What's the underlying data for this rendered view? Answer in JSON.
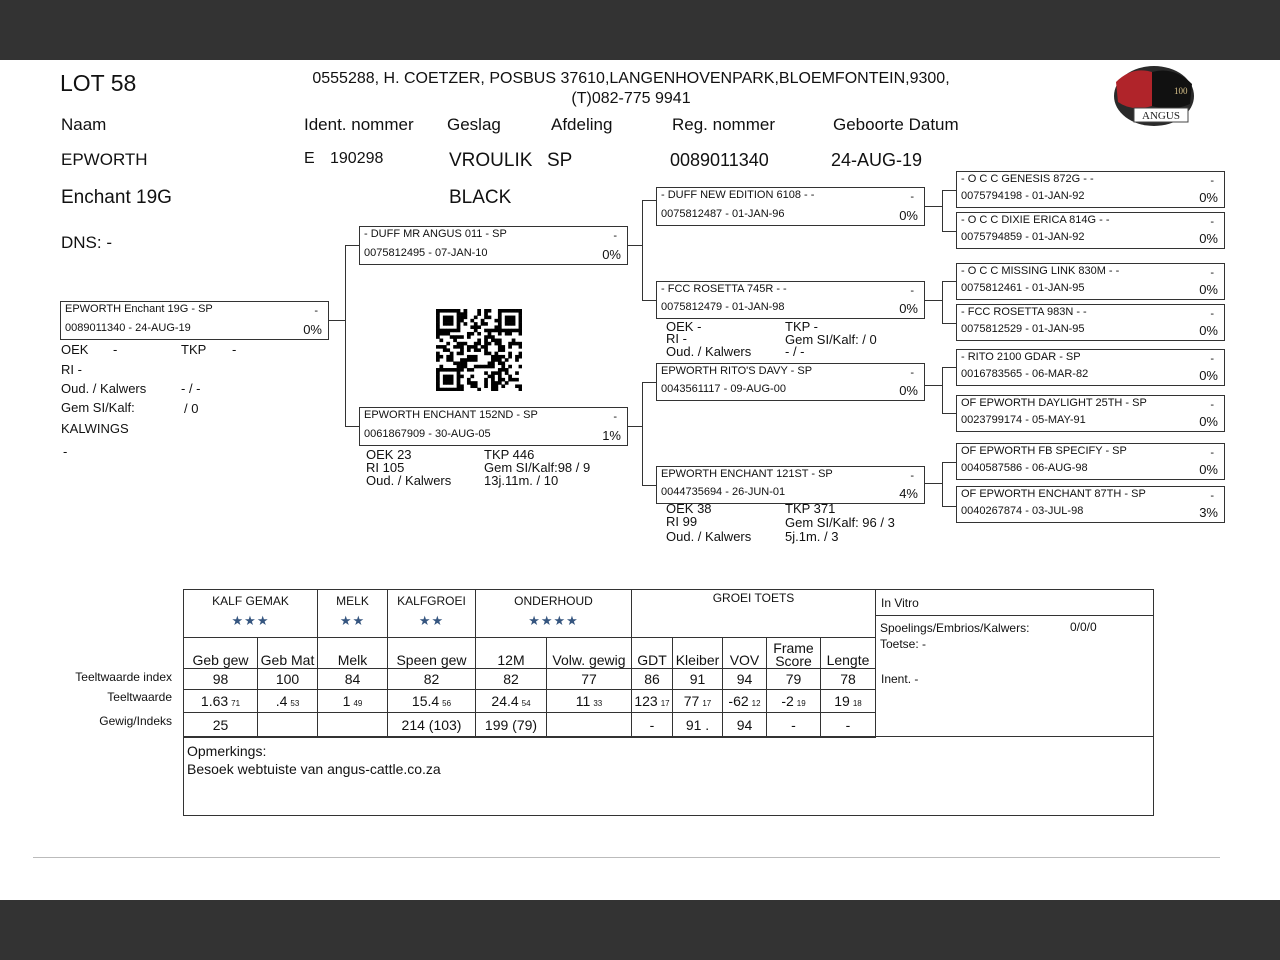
{
  "lot": "LOT 58",
  "owner_line1": "0555288, H. COETZER, POSBUS 37610,LANGENHOVENPARK,BLOEMFONTEIN,9300,",
  "owner_line2": "(T)082-775 9941",
  "logo": {
    "text": "ANGUS",
    "sub": "100 years",
    "colors": {
      "red": "#b0242a",
      "black": "#111111"
    }
  },
  "headers": {
    "naam": "Naam",
    "ident": "Ident. nommer",
    "geslag": "Geslag",
    "afdeling": "Afdeling",
    "reg": "Reg. nommer",
    "geboorte": "Geboorte Datum"
  },
  "animal": {
    "naam1": "EPWORTH",
    "naam2": "Enchant 19G",
    "ident_prefix": "E",
    "ident": "190298",
    "geslag": "VROULIK",
    "afdeling": "SP",
    "kleur": "BLACK",
    "reg": "0089011340",
    "geboorte": "24-AUG-19",
    "dns": "DNS: -"
  },
  "subject_stats": {
    "oek_l": "OEK",
    "oek": "-",
    "tkp_l": "TKP",
    "tkp": "-",
    "ri": "RI  -",
    "oud_l": "Oud. / Kalwers",
    "oud": "- / -",
    "gem_l": "Gem SI/Kalf:",
    "gem": "/ 0",
    "kalwings": "KALWINGS",
    "kalwings_val": "-"
  },
  "pedigree": {
    "subject": {
      "name": "EPWORTH Enchant 19G - SP",
      "dash": "-",
      "reg": "0089011340 -  24-AUG-19",
      "pct": "0%"
    },
    "sire": {
      "name": "- DUFF MR ANGUS 011 - SP",
      "dash": "-",
      "reg": "0075812495 - 07-JAN-10",
      "pct": "0%"
    },
    "dam": {
      "name": "EPWORTH ENCHANT 152ND - SP",
      "dash": "-",
      "reg": "0061867909 - 30-AUG-05",
      "pct": "1%"
    },
    "ss": {
      "name": "- DUFF NEW EDITION 6108 - -",
      "dash": "-",
      "reg": "0075812487 - 01-JAN-96",
      "pct": "0%"
    },
    "sd": {
      "name": "- FCC ROSETTA 745R - -",
      "dash": "-",
      "reg": "0075812479 - 01-JAN-98",
      "pct": "0%"
    },
    "ds": {
      "name": "EPWORTH RITO'S DAVY - SP",
      "dash": "-",
      "reg": "0043561117 - 09-AUG-00",
      "pct": "0%"
    },
    "dd": {
      "name": "EPWORTH ENCHANT 121ST - SP",
      "dash": "-",
      "reg": "0044735694 - 26-JUN-01",
      "pct": "4%"
    },
    "g3": [
      {
        "name": "- O C C GENESIS 872G - -",
        "dash": "-",
        "reg": "0075794198 - 01-JAN-92",
        "pct": "0%"
      },
      {
        "name": "- O C C  DIXIE ERICA 814G - -",
        "dash": "-",
        "reg": "0075794859 - 01-JAN-92",
        "pct": "0%"
      },
      {
        "name": "- O C C MISSING LINK 830M - -",
        "dash": "-",
        "reg": "0075812461 - 01-JAN-95",
        "pct": "0%"
      },
      {
        "name": "- FCC ROSETTA 983N - -",
        "dash": "-",
        "reg": "0075812529 - 01-JAN-95",
        "pct": "0%"
      },
      {
        "name": "- RITO 2100 GDAR - SP",
        "dash": "-",
        "reg": "0016783565 - 06-MAR-82",
        "pct": "0%"
      },
      {
        "name": "OF EPWORTH DAYLIGHT 25TH - SP",
        "dash": "-",
        "reg": "0023799174 - 05-MAY-91",
        "pct": "0%"
      },
      {
        "name": "OF EPWORTH FB SPECIFY - SP",
        "dash": "-",
        "reg": "0040587586 - 06-AUG-98",
        "pct": "0%"
      },
      {
        "name": "OF EPWORTH ENCHANT 87TH - SP",
        "dash": "-",
        "reg": "0040267874 - 03-JUL-98",
        "pct": "3%"
      }
    ]
  },
  "dam_stats": {
    "oek": "OEK       23",
    "tkp": "TKP       446",
    "ri": "RI   105",
    "gem": "Gem SI/Kalf:98 / 9",
    "oud": "Oud. / Kalwers",
    "oud_v": "13j.11m. / 10"
  },
  "sd_stats": {
    "oek": "OEK      -",
    "tkp": "TKP       -",
    "ri": "RI        -",
    "gem": "Gem SI/Kalf:   / 0",
    "oud": "Oud. / Kalwers",
    "oud_v": "- / -"
  },
  "dd_stats": {
    "oek": "OEK       38",
    "tkp": "TKP        371",
    "ri": "RI           99",
    "gem": "Gem SI/Kalf:   96 / 3",
    "oud": "Oud. / Kalwers",
    "oud_v": "5j.1m. / 3"
  },
  "qr": {
    "icon": "qr-code-icon"
  },
  "ebv": {
    "groups": [
      {
        "label": "KALF GEMAK",
        "stars": "★★★"
      },
      {
        "label": "MELK",
        "stars": "★★"
      },
      {
        "label": "KALFGROEI",
        "stars": "★★"
      },
      {
        "label": "ONDERHOUD",
        "stars": "★★★★"
      },
      {
        "label": "GROEI TOETS",
        "stars": ""
      }
    ],
    "columns": [
      "Geb gew",
      "Geb Mat",
      "Melk",
      "Speen gew",
      "12M",
      "Volw. gewig",
      "GDT",
      "Kleiber",
      "VOV",
      "Frame Score",
      "Lengte"
    ],
    "row_labels": [
      "Teeltwaarde index",
      "Teeltwaarde",
      "Gewig/Indeks"
    ],
    "index": [
      "98",
      "100",
      "84",
      "82",
      "82",
      "77",
      "86",
      "91",
      "94",
      "79",
      "78"
    ],
    "ebv": [
      [
        "1.63",
        "71"
      ],
      [
        ".4",
        "53"
      ],
      [
        "1",
        "49"
      ],
      [
        "15.4",
        "56"
      ],
      [
        "24.4",
        "54"
      ],
      [
        "11",
        "33"
      ],
      [
        "123",
        "17"
      ],
      [
        "77",
        "17"
      ],
      [
        "-62",
        "12"
      ],
      [
        "-2",
        "19"
      ],
      [
        "19",
        "18"
      ]
    ],
    "weights": [
      "25",
      "",
      "",
      "214 (103)",
      "199 (79)",
      "",
      "-",
      "91 .",
      "94",
      "-",
      "-"
    ],
    "star_color": "#35557f"
  },
  "invitro": {
    "title": "In Vitro",
    "spoel_l": "Spoelings/Embrios/Kalwers:",
    "spoel": "0/0/0",
    "toetse": "Toetse: -",
    "inent": "Inent. -"
  },
  "remarks": {
    "title": "Opmerkings:",
    "text": "Besoek webtuiste van angus-cattle.co.za"
  }
}
